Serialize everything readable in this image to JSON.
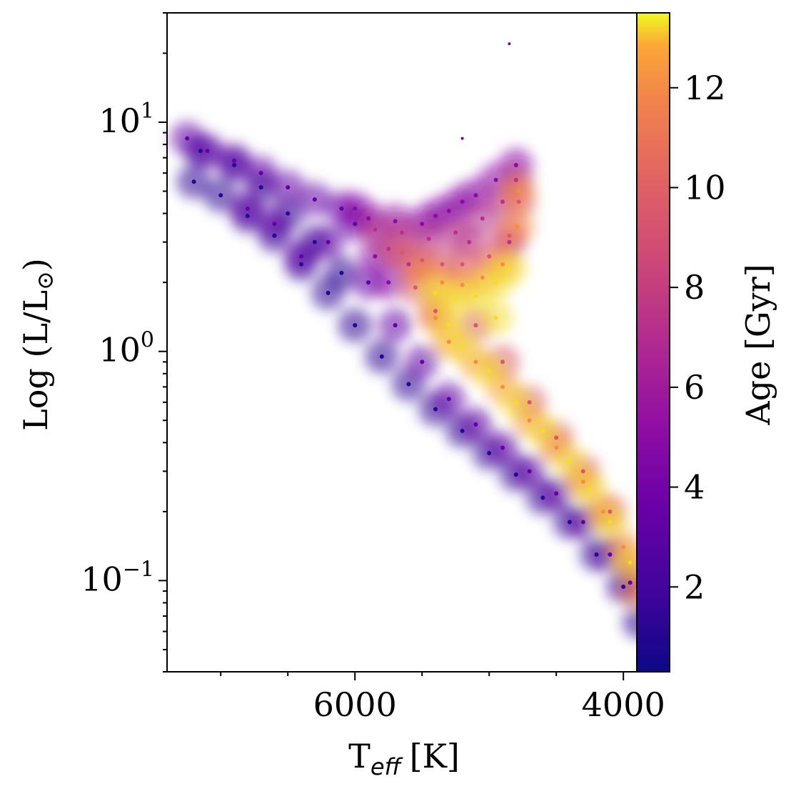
{
  "chart_data": {
    "type": "scatter",
    "xlabel_main": "T",
    "xlabel_sub": "eff",
    "xlabel_unit": "[K]",
    "ylabel_main": "Log (L/L",
    "ylabel_sym": "⊙",
    "ylabel_close": ")",
    "xlim": [
      7400,
      3900
    ],
    "x_reversed": true,
    "ylim": [
      0.04,
      30
    ],
    "y_scale": "log",
    "x_ticks": [
      {
        "value": 6000,
        "label": "6000"
      },
      {
        "value": 4000,
        "label": "4000"
      }
    ],
    "y_ticks": [
      {
        "value": 10,
        "base": "10",
        "exp": "1"
      },
      {
        "value": 1,
        "base": "10",
        "exp": "0"
      },
      {
        "value": 0.1,
        "base": "10",
        "exp": "−1"
      }
    ],
    "colorbar": {
      "label": "Age [Gyr]",
      "colormap": "plasma",
      "range": [
        0.3,
        13.5
      ],
      "ticks": [
        {
          "value": 2,
          "label": "2"
        },
        {
          "value": 4,
          "label": "4"
        },
        {
          "value": 6,
          "label": "6"
        },
        {
          "value": 8,
          "label": "8"
        },
        {
          "value": 10,
          "label": "10"
        },
        {
          "value": 12,
          "label": "12"
        }
      ]
    },
    "groups": [
      {
        "age": 1.0,
        "points": [
          [
            7200,
            5.5
          ],
          [
            7000,
            4.8
          ],
          [
            6800,
            3.9
          ],
          [
            6600,
            3.2
          ],
          [
            6400,
            2.4
          ],
          [
            6200,
            1.8
          ],
          [
            6000,
            1.3
          ],
          [
            5800,
            0.95
          ],
          [
            5600,
            0.72
          ],
          [
            5400,
            0.56
          ],
          [
            5200,
            0.45
          ],
          [
            5000,
            0.36
          ],
          [
            4800,
            0.29
          ],
          [
            4600,
            0.23
          ],
          [
            4400,
            0.18
          ],
          [
            4200,
            0.13
          ],
          [
            4000,
            0.094
          ],
          [
            3880,
            0.066
          ],
          [
            7150,
            7.5
          ],
          [
            6900,
            6.5
          ],
          [
            6700,
            5.2
          ],
          [
            6500,
            4.0
          ],
          [
            6300,
            3.0
          ],
          [
            6100,
            2.2
          ]
        ]
      },
      {
        "age": 3.0,
        "points": [
          [
            7250,
            8.5
          ],
          [
            7100,
            7.5
          ],
          [
            6900,
            6.8
          ],
          [
            6700,
            6.0
          ],
          [
            6500,
            5.2
          ],
          [
            6300,
            4.6
          ],
          [
            6100,
            4.2
          ],
          [
            6000,
            3.6
          ],
          [
            6200,
            3.0
          ],
          [
            6400,
            2.6
          ],
          [
            5900,
            2.0
          ],
          [
            5700,
            1.3
          ],
          [
            5500,
            0.9
          ],
          [
            5300,
            0.62
          ],
          [
            5100,
            0.48
          ],
          [
            4900,
            0.38
          ],
          [
            4700,
            0.3
          ],
          [
            4500,
            0.24
          ],
          [
            4300,
            0.18
          ],
          [
            4100,
            0.13
          ],
          [
            3950,
            0.098
          ],
          [
            6800,
            4.2
          ],
          [
            6600,
            3.6
          ]
        ]
      },
      {
        "age": 4.5,
        "points": [
          [
            5900,
            3.8
          ],
          [
            5700,
            3.7
          ],
          [
            5500,
            3.6
          ],
          [
            5300,
            4.1
          ],
          [
            5100,
            4.8
          ],
          [
            4950,
            5.6
          ],
          [
            4800,
            6.5
          ],
          [
            5200,
            4.5
          ],
          [
            5400,
            3.9
          ],
          [
            5850,
            2.6
          ],
          [
            5750,
            2.0
          ],
          [
            6000,
            4.2
          ]
        ]
      },
      {
        "age": 6.5,
        "points": [
          [
            5850,
            3.4
          ],
          [
            5650,
            3.3
          ],
          [
            5450,
            3.1
          ],
          [
            5250,
            3.3
          ],
          [
            5050,
            3.8
          ],
          [
            4900,
            4.5
          ],
          [
            4800,
            5.6
          ],
          [
            5750,
            2.8
          ],
          [
            5600,
            2.4
          ],
          [
            4850,
            3.0
          ],
          [
            5150,
            3.0
          ]
        ]
      },
      {
        "age": 8.5,
        "points": [
          [
            5650,
            2.7
          ],
          [
            5500,
            2.5
          ],
          [
            5350,
            2.4
          ],
          [
            5200,
            2.4
          ],
          [
            5000,
            2.6
          ],
          [
            4850,
            3.2
          ],
          [
            4780,
            4.5
          ],
          [
            5550,
            1.9
          ],
          [
            5400,
            1.5
          ],
          [
            4900,
            0.9
          ],
          [
            4700,
            0.6
          ],
          [
            4500,
            0.42
          ],
          [
            4300,
            0.3
          ],
          [
            4100,
            0.2
          ],
          [
            3950,
            0.12
          ],
          [
            5100,
            1.3
          ]
        ]
      },
      {
        "age": 11.0,
        "points": [
          [
            5500,
            2.2
          ],
          [
            5350,
            2.0
          ],
          [
            5200,
            1.95
          ],
          [
            5050,
            2.1
          ],
          [
            4900,
            2.4
          ],
          [
            4790,
            3.5
          ],
          [
            4780,
            5.0
          ],
          [
            5400,
            1.4
          ],
          [
            5300,
            1.1
          ],
          [
            5100,
            0.9
          ],
          [
            4900,
            0.7
          ],
          [
            4700,
            0.5
          ],
          [
            4500,
            0.38
          ],
          [
            4300,
            0.27
          ],
          [
            4150,
            0.2
          ],
          [
            4000,
            0.14
          ],
          [
            3900,
            0.09
          ]
        ]
      },
      {
        "age": 13.0,
        "points": [
          [
            5400,
            1.8
          ],
          [
            5250,
            1.7
          ],
          [
            5100,
            1.75
          ],
          [
            4950,
            2.0
          ],
          [
            4850,
            2.3
          ],
          [
            5300,
            1.3
          ],
          [
            5200,
            1.05
          ],
          [
            5000,
            0.82
          ],
          [
            4800,
            0.6
          ],
          [
            4600,
            0.45
          ],
          [
            4400,
            0.33
          ],
          [
            4250,
            0.25
          ],
          [
            4100,
            0.18
          ],
          [
            3950,
            0.12
          ],
          [
            4950,
            1.4
          ]
        ]
      }
    ],
    "outliers": [
      [
        4850,
        22
      ],
      [
        5200,
        8.5
      ]
    ]
  }
}
